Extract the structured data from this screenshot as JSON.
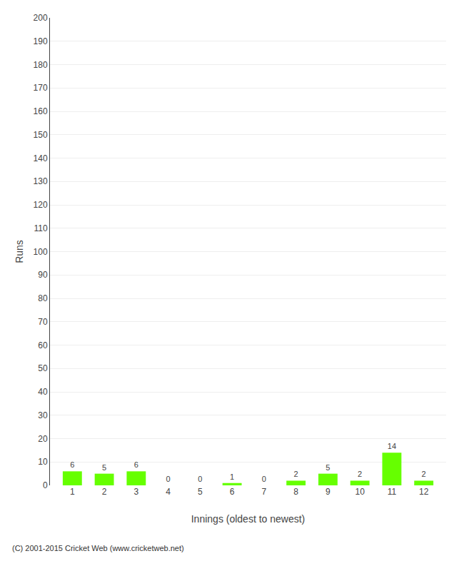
{
  "chart_data": {
    "type": "bar",
    "xlabel": "Innings (oldest to newest)",
    "ylabel": "Runs",
    "categories": [
      1,
      2,
      3,
      4,
      5,
      6,
      7,
      8,
      9,
      10,
      11,
      12
    ],
    "values": [
      6,
      5,
      6,
      0,
      0,
      1,
      0,
      2,
      5,
      2,
      14,
      2
    ],
    "color": "#66ff00",
    "ylim": [
      0,
      200
    ],
    "yticks": [
      0,
      10,
      20,
      30,
      40,
      50,
      60,
      70,
      80,
      90,
      100,
      110,
      120,
      130,
      140,
      150,
      160,
      170,
      180,
      190,
      200
    ],
    "grid": true,
    "data_labels": true,
    "footer": "(C) 2001-2015 Cricket Web (www.cricketweb.net)"
  }
}
